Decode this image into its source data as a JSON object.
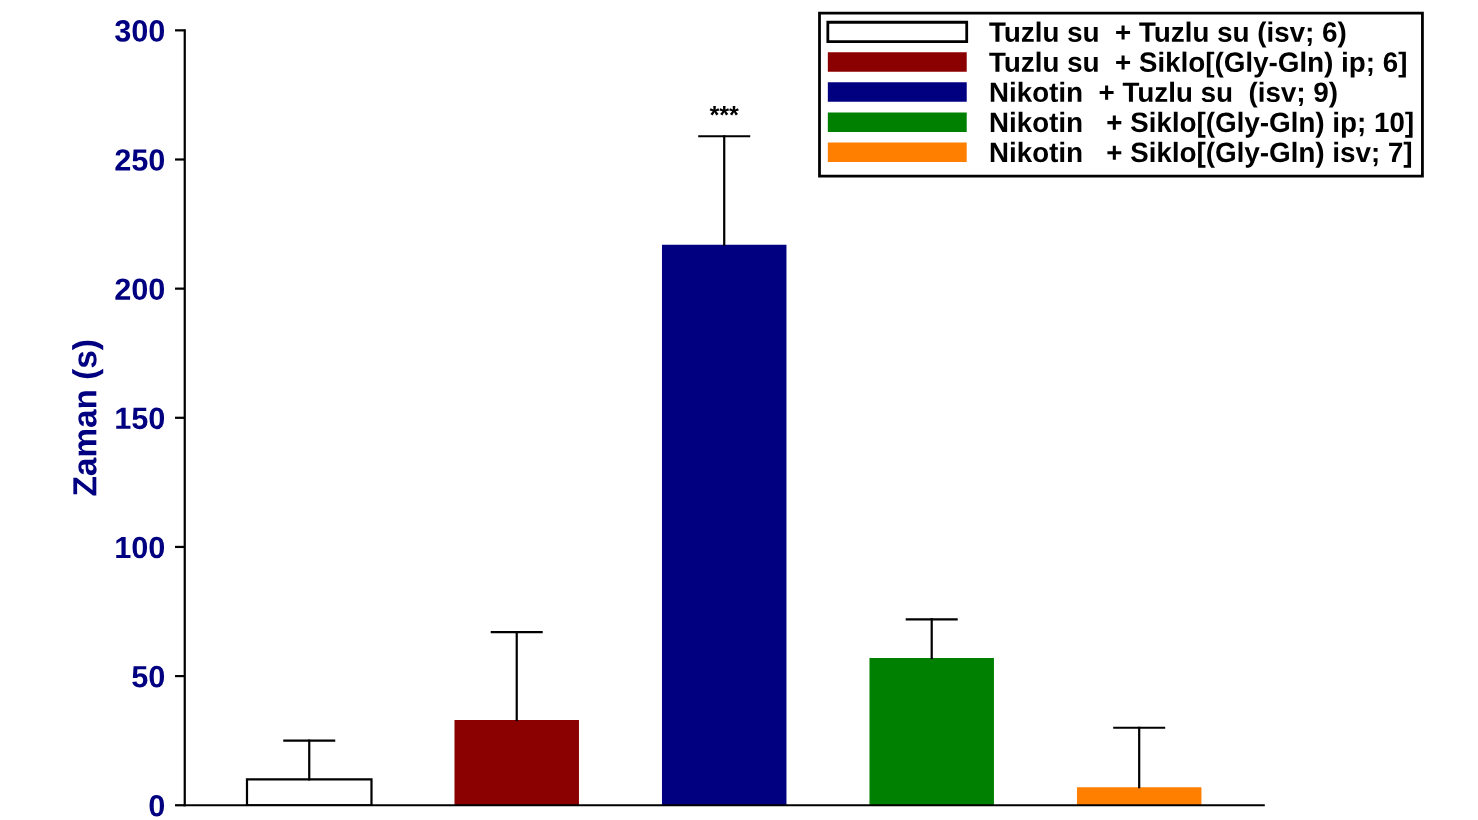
{
  "chart_data": {
    "type": "bar",
    "ylabel": "Zaman (s)",
    "categories": [
      null,
      null,
      null,
      null,
      null
    ],
    "series": [
      {
        "name": "Tuzlu su  + Tuzlu su (isv; 6)",
        "color": "#ffffff",
        "values": [
          10,
          null,
          null,
          null,
          null
        ],
        "errors": [
          [
            10,
            25
          ],
          null,
          null,
          null,
          null
        ]
      },
      {
        "name": "Tuzlu su  + Siklo[(Gly-Gln) ip; 6]",
        "color": "#8b0000",
        "values": [
          null,
          33,
          null,
          null,
          null
        ],
        "errors": [
          null,
          [
            33,
            67
          ],
          null,
          null,
          null
        ]
      },
      {
        "name": "Nikotin  + Tuzlu su  (isv; 9)",
        "color": "#000080",
        "values": [
          null,
          null,
          217,
          null,
          null
        ],
        "errors": [
          null,
          null,
          [
            217,
            259
          ],
          null,
          null
        ]
      },
      {
        "name": "Nikotin   + Siklo[(Gly-Gln) ip; 10]",
        "color": "#008000",
        "values": [
          null,
          null,
          null,
          57,
          null
        ],
        "errors": [
          null,
          null,
          null,
          [
            57,
            72
          ],
          null
        ]
      },
      {
        "name": "Nikotin   + Siklo[(Gly-Gln) isv; 7]",
        "color": "#ff8000",
        "values": [
          null,
          null,
          null,
          null,
          7
        ],
        "errors": [
          null,
          null,
          null,
          null,
          [
            7,
            30
          ]
        ]
      }
    ],
    "annotations": [
      "***"
    ],
    "ylim": [
      0,
      300
    ],
    "yticks": [
      0,
      50,
      100,
      150,
      200,
      250,
      300
    ],
    "grid": false,
    "legend": "top right"
  }
}
